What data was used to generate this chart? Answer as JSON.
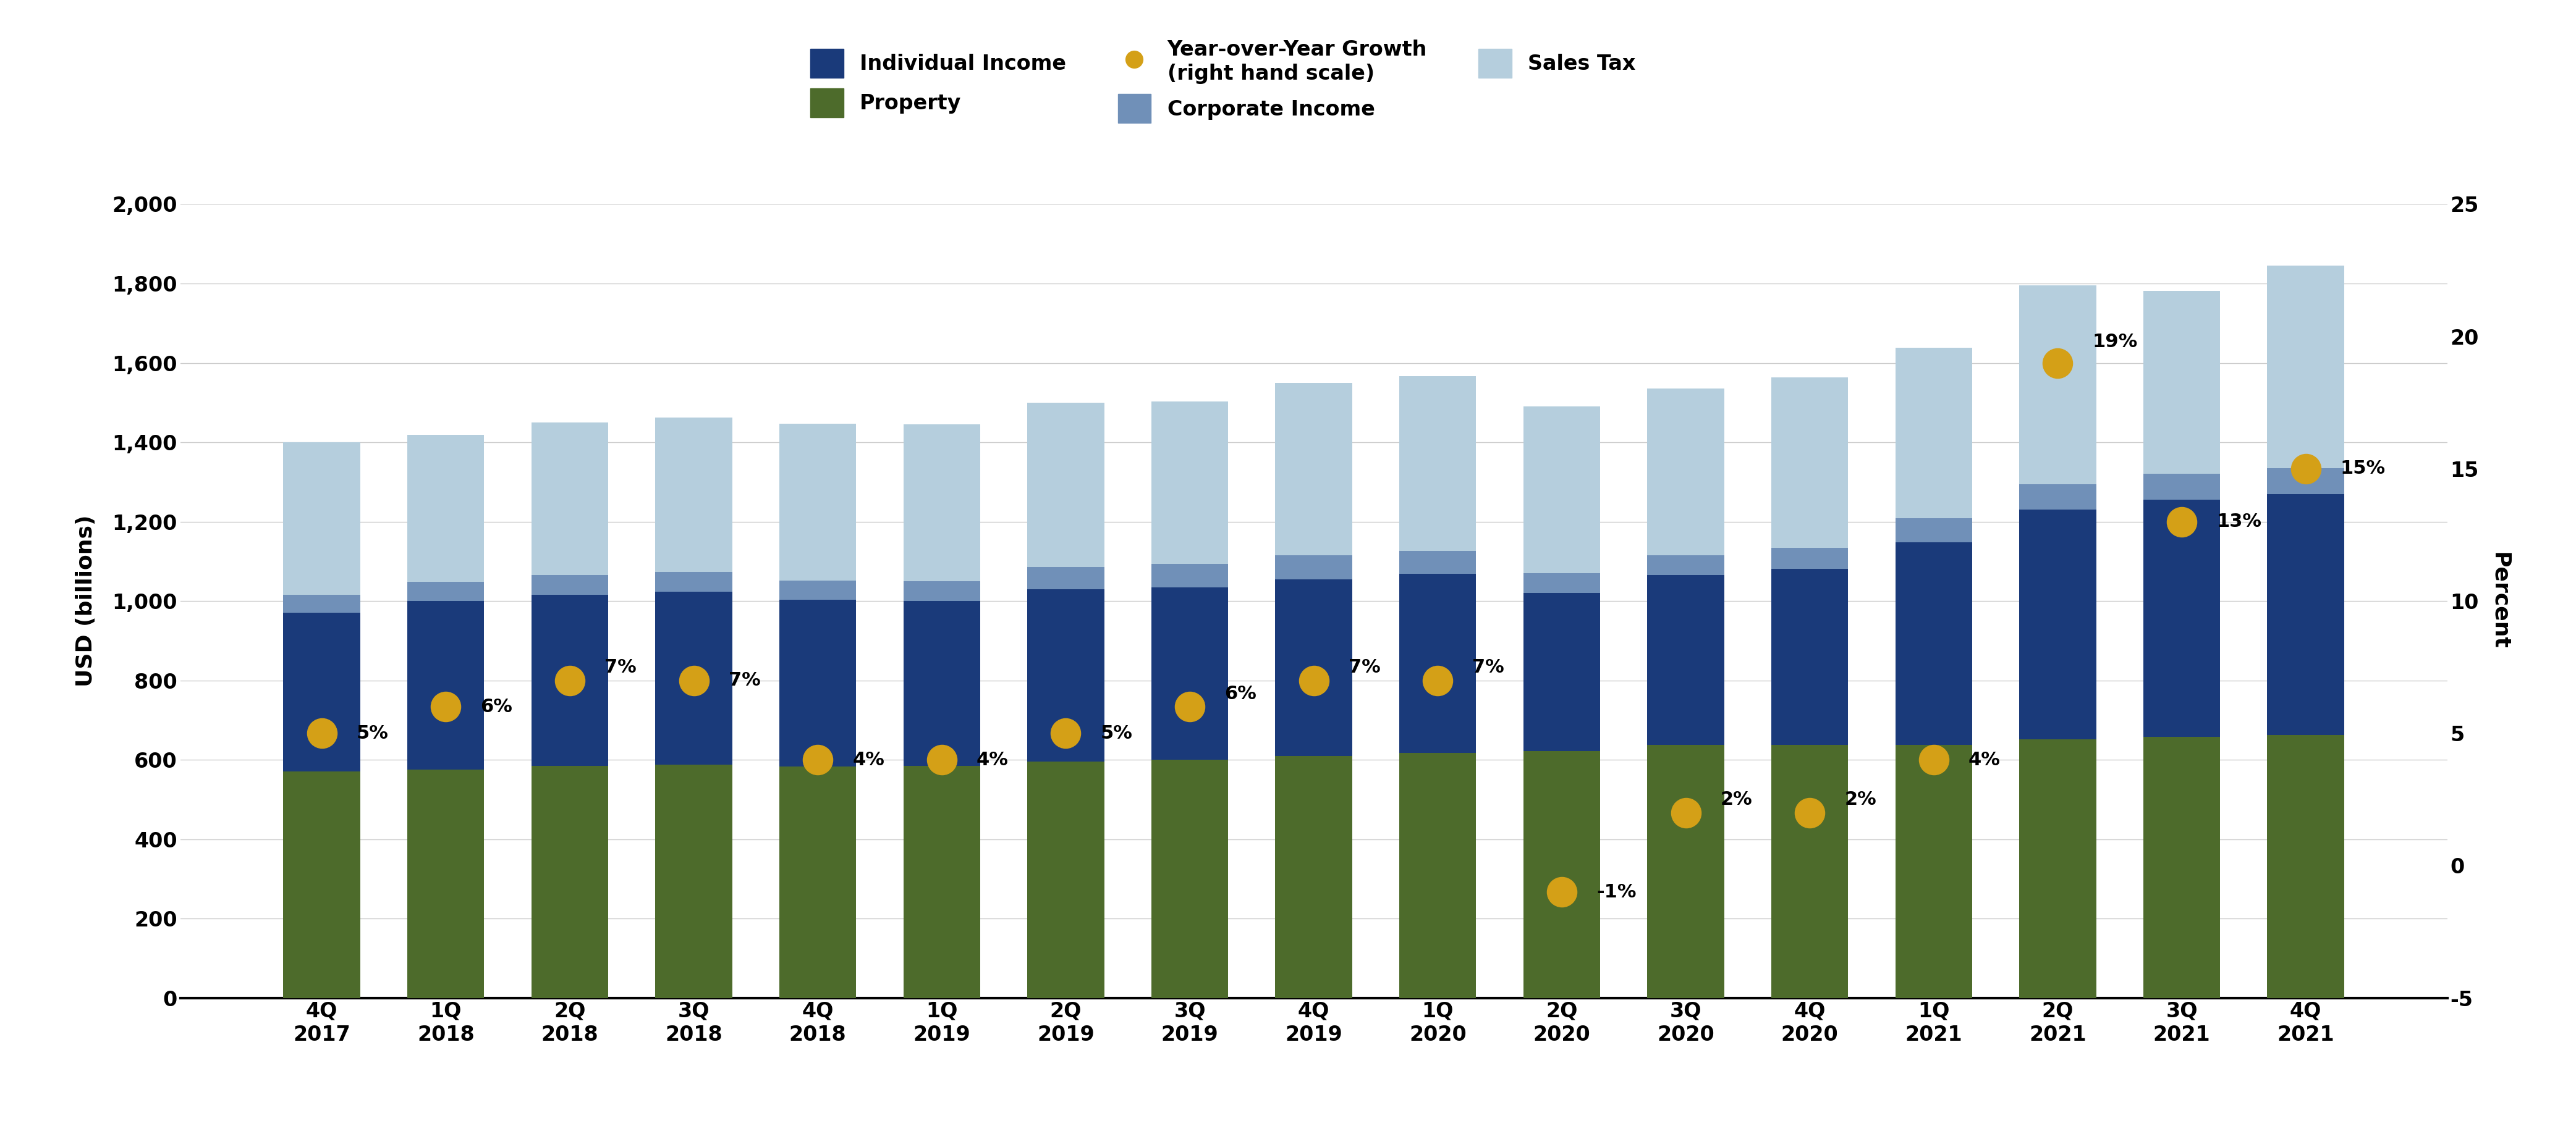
{
  "categories": [
    "4Q\n2017",
    "1Q\n2018",
    "2Q\n2018",
    "3Q\n2018",
    "4Q\n2018",
    "1Q\n2019",
    "2Q\n2019",
    "3Q\n2019",
    "4Q\n2019",
    "1Q\n2020",
    "2Q\n2020",
    "3Q\n2020",
    "4Q\n2020",
    "1Q\n2021",
    "2Q\n2021",
    "3Q\n2021",
    "4Q\n2021"
  ],
  "property": [
    570,
    575,
    585,
    588,
    583,
    585,
    595,
    600,
    610,
    618,
    622,
    638,
    638,
    638,
    652,
    658,
    662
  ],
  "individual_income": [
    400,
    425,
    430,
    435,
    420,
    415,
    435,
    435,
    445,
    450,
    398,
    428,
    443,
    510,
    578,
    598,
    608
  ],
  "corporate_income": [
    45,
    48,
    50,
    50,
    48,
    50,
    55,
    58,
    60,
    58,
    50,
    50,
    53,
    60,
    65,
    65,
    65
  ],
  "sales_tax": [
    385,
    370,
    385,
    390,
    395,
    395,
    415,
    410,
    435,
    440,
    420,
    420,
    430,
    430,
    500,
    460,
    510
  ],
  "yoy_growth": [
    5,
    6,
    7,
    7,
    4,
    4,
    5,
    6,
    7,
    7,
    -1,
    2,
    2,
    4,
    19,
    13,
    15
  ],
  "colors": {
    "property": "#4d6b2b",
    "individual_income": "#1a3a7a",
    "corporate_income": "#7090b8",
    "sales_tax": "#b5cedd",
    "yoy": "#d4a017"
  },
  "ylabel_left": "USD (billions)",
  "ylabel_right": "Percent",
  "ylim_left": [
    0,
    2000
  ],
  "ylim_right": [
    -5,
    25
  ],
  "yticks_left": [
    0,
    200,
    400,
    600,
    800,
    1000,
    1200,
    1400,
    1600,
    1800,
    2000
  ],
  "yticks_right": [
    -5,
    0,
    5,
    10,
    15,
    20,
    25
  ],
  "background_color": "#ffffff",
  "label_fontsize": 26,
  "tick_fontsize": 24,
  "legend_fontsize": 24,
  "annot_fontsize": 22
}
